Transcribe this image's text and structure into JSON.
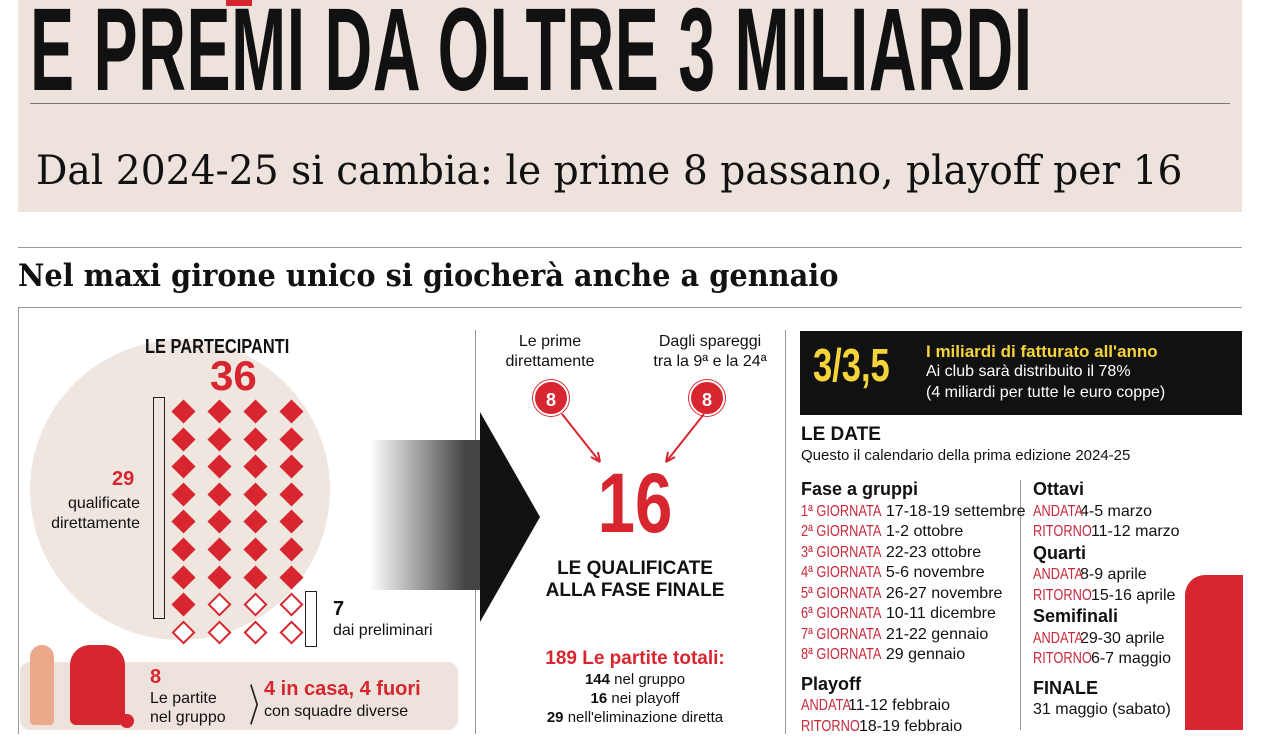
{
  "header": {
    "title": "E PREMI DA OLTRE 3 MILIARDI",
    "subtitle": "Dal 2024-25 si cambia: le prime 8 passano, playoff per 16"
  },
  "section_heading": "Nel maxi girone unico si giocherà anche a gennaio",
  "participants": {
    "title": "LE PARTECIPANTI",
    "total": "36",
    "direct_count": "29",
    "direct_label_1": "qualificate",
    "direct_label_2": "direttamente",
    "prelim_count": "7",
    "prelim_label": "dai preliminari",
    "filled": 29,
    "outline": 7
  },
  "matches_box": {
    "count": "8",
    "label_1": "Le partite",
    "label_2": "nel gruppo",
    "highlight": "4 in casa, 4 fuori",
    "detail": "con squadre diverse"
  },
  "qualified": {
    "left_label_1": "Le prime",
    "left_label_2": "direttamente",
    "left_count": "8",
    "right_label_1": "Dagli spareggi",
    "right_label_2": "tra la 9ª e la 24ª",
    "right_count": "8",
    "total": "16",
    "label_1": "LE QUALIFICATE",
    "label_2": "ALLA FASE FINALE"
  },
  "totals": {
    "headline": "189 Le partite totali:",
    "rows": [
      {
        "n": "144",
        "t": "nel gruppo"
      },
      {
        "n": "16",
        "t": "nei playoff"
      },
      {
        "n": "29",
        "t": "nell'eliminazione diretta"
      }
    ]
  },
  "revenue": {
    "value": "3/3,5",
    "line1": "I miliardi di fatturato all'anno",
    "line2": "Ai club sarà distribuito il 78%",
    "line3": "(4 miliardi per tutte le euro coppe)"
  },
  "dates": {
    "title": "LE DATE",
    "subtitle": "Questo il calendario della prima edizione 2024-25",
    "group": {
      "title": "Fase a gruppi",
      "rows": [
        {
          "l": "1ª GIORNATA",
          "d": "17-18-19 settembre"
        },
        {
          "l": "2ª GIORNATA",
          "d": "1-2 ottobre"
        },
        {
          "l": "3ª GIORNATA",
          "d": "22-23 ottobre"
        },
        {
          "l": "4ª GIORNATA",
          "d": "5-6 novembre"
        },
        {
          "l": "5ª GIORNATA",
          "d": "26-27 novembre"
        },
        {
          "l": "6ª GIORNATA",
          "d": "10-11 dicembre"
        },
        {
          "l": "7ª GIORNATA",
          "d": "21-22 gennaio"
        },
        {
          "l": "8ª GIORNATA",
          "d": "29 gennaio"
        }
      ]
    },
    "playoff": {
      "title": "Playoff",
      "rows": [
        {
          "l": "ANDATA",
          "d": "11-12 febbraio"
        },
        {
          "l": "RITORNO",
          "d": "18-19 febbraio"
        }
      ]
    },
    "ottavi": {
      "title": "Ottavi",
      "rows": [
        {
          "l": "ANDATA",
          "d": "4-5 marzo"
        },
        {
          "l": "RITORNO",
          "d": "11-12 marzo"
        }
      ]
    },
    "quarti": {
      "title": "Quarti",
      "rows": [
        {
          "l": "ANDATA",
          "d": "8-9 aprile"
        },
        {
          "l": "RITORNO",
          "d": "15-16 aprile"
        }
      ]
    },
    "semi": {
      "title": "Semifinali",
      "rows": [
        {
          "l": "ANDATA",
          "d": "29-30 aprile"
        },
        {
          "l": "RITORNO",
          "d": "6-7 maggio"
        }
      ]
    },
    "finale": {
      "title": "FINALE",
      "date": "31 maggio (sabato)"
    }
  },
  "colors": {
    "accent": "#d7262f",
    "beige": "#ede3dc",
    "revenue_bg": "#111111",
    "revenue_text": "#f5d33a"
  }
}
